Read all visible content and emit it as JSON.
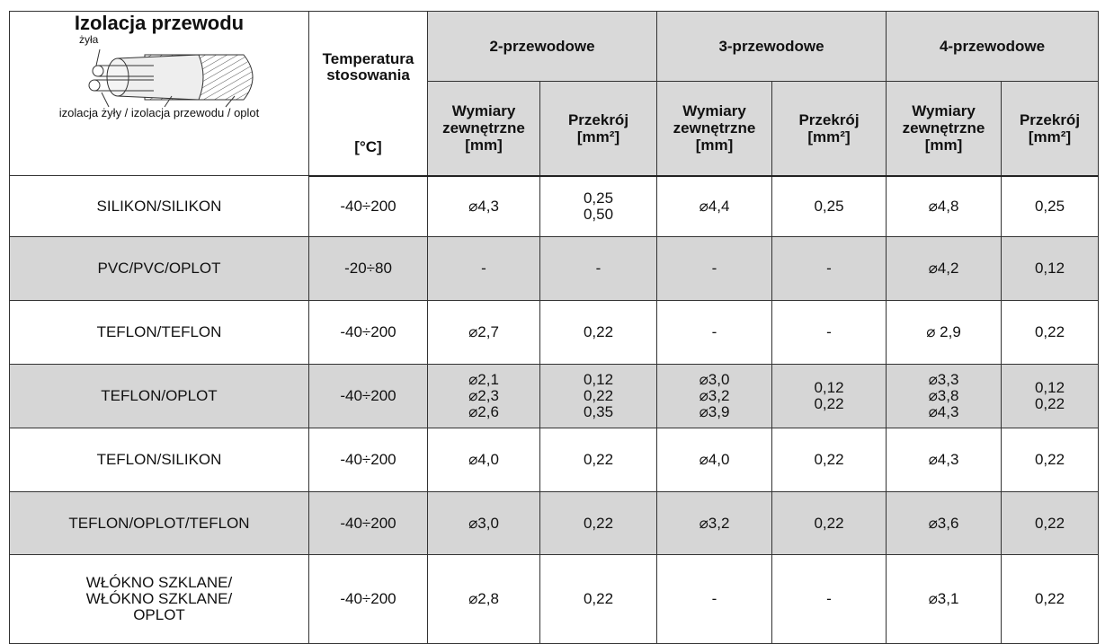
{
  "header": {
    "title": "Izolacja przewodu",
    "illustration_labels": {
      "core": "żyła",
      "layers": "izolacja żyły / izolacja przewodu / oplot"
    },
    "temperature": [
      "Temperatura",
      "stosowania",
      "[°C]"
    ],
    "groups": [
      "2-przewodowe",
      "3-przewodowe",
      "4-przewodowe"
    ],
    "subheaders": [
      [
        "Wymiary",
        "zewnętrzne",
        "[mm]"
      ],
      [
        "Przekrój",
        "[mm²]"
      ],
      [
        "Wymiary",
        "zewnętrzne",
        "[mm]"
      ],
      [
        "Przekrój",
        "[mm²]"
      ],
      [
        "Wymiary",
        "zewnętrzne",
        "[mm]"
      ],
      [
        "Przekrój",
        "[mm²]"
      ]
    ]
  },
  "table": {
    "rows": [
      [
        [
          "SILIKON/SILIKON"
        ],
        [
          "-40÷200"
        ],
        [
          "⌀4,3"
        ],
        [
          "0,25",
          "0,50"
        ],
        [
          "⌀4,4"
        ],
        [
          "0,25"
        ],
        [
          "⌀4,8"
        ],
        [
          "0,25"
        ]
      ],
      [
        [
          "PVC/PVC/OPLOT"
        ],
        [
          "-20÷80"
        ],
        [
          "-"
        ],
        [
          "-"
        ],
        [
          "-"
        ],
        [
          "-"
        ],
        [
          "⌀4,2"
        ],
        [
          "0,12"
        ]
      ],
      [
        [
          "TEFLON/TEFLON"
        ],
        [
          "-40÷200"
        ],
        [
          "⌀2,7"
        ],
        [
          "0,22"
        ],
        [
          "-"
        ],
        [
          "-"
        ],
        [
          "⌀ 2,9"
        ],
        [
          "0,22"
        ]
      ],
      [
        [
          "TEFLON/OPLOT"
        ],
        [
          "-40÷200"
        ],
        [
          "⌀2,1",
          "⌀2,3",
          "⌀2,6"
        ],
        [
          "0,12",
          "0,22",
          "0,35"
        ],
        [
          "⌀3,0",
          "⌀3,2",
          "⌀3,9"
        ],
        [
          "0,12",
          "0,22"
        ],
        [
          "⌀3,3",
          "⌀3,8",
          "⌀4,3"
        ],
        [
          "0,12",
          "0,22"
        ]
      ],
      [
        [
          "TEFLON/SILIKON"
        ],
        [
          "-40÷200"
        ],
        [
          "⌀4,0"
        ],
        [
          "0,22"
        ],
        [
          "⌀4,0"
        ],
        [
          "0,22"
        ],
        [
          "⌀4,3"
        ],
        [
          "0,22"
        ]
      ],
      [
        [
          "TEFLON/OPLOT/TEFLON"
        ],
        [
          "-40÷200"
        ],
        [
          "⌀3,0"
        ],
        [
          "0,22"
        ],
        [
          "⌀3,2"
        ],
        [
          "0,22"
        ],
        [
          "⌀3,6"
        ],
        [
          "0,22"
        ]
      ],
      [
        [
          "WŁÓKNO SZKLANE/",
          "WŁÓKNO SZKLANE/",
          "OPLOT"
        ],
        [
          "-40÷200"
        ],
        [
          "⌀2,8"
        ],
        [
          "0,22"
        ],
        [
          "-"
        ],
        [
          "-"
        ],
        [
          "⌀3,1"
        ],
        [
          "0,22"
        ]
      ]
    ]
  }
}
